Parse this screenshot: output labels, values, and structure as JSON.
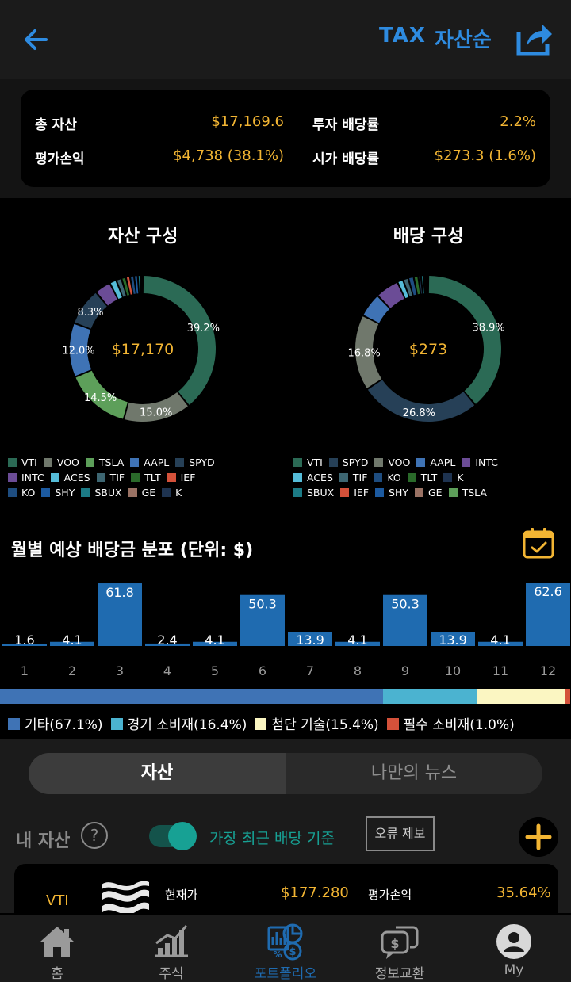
{
  "header": {
    "tax_label": "TAX",
    "sort_label": "자산순"
  },
  "summary": {
    "total_assets_label": "총 자산",
    "total_assets_value": "$17,169.6",
    "invest_yield_label": "투자 배당률",
    "invest_yield_value": "2.2%",
    "gain_label": "평가손익",
    "gain_value": "$4,738 (38.1%)",
    "market_yield_label": "시가 배당률",
    "market_yield_value": "$273.3 (1.6%)"
  },
  "asset_chart": {
    "title": "자산 구성",
    "center_label": "$17,170",
    "slices": [
      {
        "name": "VTI",
        "value": 39.2,
        "color": "#2b6a55",
        "label": "39.2%"
      },
      {
        "name": "VOO",
        "value": 15.0,
        "color": "#70786c",
        "label": "15.0%"
      },
      {
        "name": "TSLA",
        "value": 14.5,
        "color": "#5d9f5a",
        "label": "14.5%"
      },
      {
        "name": "AAPL",
        "value": 12.0,
        "color": "#3f73b5",
        "label": "12.0%"
      },
      {
        "name": "SPYD",
        "value": 8.3,
        "color": "#264057",
        "label": "8.3%"
      },
      {
        "name": "INTC",
        "value": 3.6,
        "color": "#6b4c96",
        "label": ""
      },
      {
        "name": "ACES",
        "value": 1.5,
        "color": "#55bcd8",
        "label": ""
      },
      {
        "name": "TIF",
        "value": 1.2,
        "color": "#3d6672",
        "label": ""
      },
      {
        "name": "TLT",
        "value": 1.0,
        "color": "#2a6a2a",
        "label": ""
      },
      {
        "name": "IEF",
        "value": 0.9,
        "color": "#d4513a",
        "label": ""
      },
      {
        "name": "KO",
        "value": 0.9,
        "color": "#1e4d80",
        "label": ""
      },
      {
        "name": "SHY",
        "value": 0.8,
        "color": "#1c5aa0",
        "label": ""
      },
      {
        "name": "SBUX",
        "value": 0.6,
        "color": "#1c7b86",
        "label": ""
      },
      {
        "name": "GE",
        "value": 0.3,
        "color": "#9a7264",
        "label": ""
      },
      {
        "name": "K",
        "value": 0.2,
        "color": "#1e3350",
        "label": ""
      }
    ]
  },
  "dividend_chart": {
    "title": "배당 구성",
    "center_label": "$273",
    "slices": [
      {
        "name": "VTI",
        "value": 38.9,
        "color": "#2b6a55",
        "label": "38.9%"
      },
      {
        "name": "SPYD",
        "value": 26.8,
        "color": "#264057",
        "label": "26.8%"
      },
      {
        "name": "VOO",
        "value": 16.8,
        "color": "#70786c",
        "label": "16.8%"
      },
      {
        "name": "AAPL",
        "value": 5.4,
        "color": "#3f73b5",
        "label": ""
      },
      {
        "name": "INTC",
        "value": 5.2,
        "color": "#6b4c96",
        "label": ""
      },
      {
        "name": "ACES",
        "value": 1.3,
        "color": "#55bcd8",
        "label": ""
      },
      {
        "name": "TIF",
        "value": 1.2,
        "color": "#3d6672",
        "label": ""
      },
      {
        "name": "KO",
        "value": 1.2,
        "color": "#1e4d80",
        "label": ""
      },
      {
        "name": "TLT",
        "value": 1.0,
        "color": "#2a6a2a",
        "label": ""
      },
      {
        "name": "K",
        "value": 0.6,
        "color": "#1e3350",
        "label": ""
      },
      {
        "name": "SBUX",
        "value": 0.6,
        "color": "#1c7b86",
        "label": ""
      },
      {
        "name": "IEF",
        "value": 0.4,
        "color": "#d4513a",
        "label": ""
      },
      {
        "name": "SHY",
        "value": 0.3,
        "color": "#1c5aa0",
        "label": ""
      },
      {
        "name": "GE",
        "value": 0.2,
        "color": "#9a7264",
        "label": ""
      },
      {
        "name": "TSLA",
        "value": 0.1,
        "color": "#5d9f5a",
        "label": ""
      }
    ]
  },
  "monthly": {
    "title": "월별 예상 배당금 분포 (단위: $)"
  },
  "chart_data": {
    "type": "bar",
    "categories": [
      "1",
      "2",
      "3",
      "4",
      "5",
      "6",
      "7",
      "8",
      "9",
      "10",
      "11",
      "12"
    ],
    "values": [
      1.6,
      4.1,
      61.8,
      2.4,
      4.1,
      50.3,
      13.9,
      4.1,
      50.3,
      13.9,
      4.1,
      62.6
    ],
    "title": "월별 예상 배당금 분포 (단위: $)",
    "ylim": [
      0,
      70
    ],
    "color": "#1f6bb0"
  },
  "sectors": [
    {
      "label": "기타(67.1%)",
      "value": 67.1,
      "color": "#3f73b5"
    },
    {
      "label": "경기 소비재(16.4%)",
      "value": 16.4,
      "color": "#4bb3d0"
    },
    {
      "label": "첨단 기술(15.4%)",
      "value": 15.4,
      "color": "#fbf6c2"
    },
    {
      "label": "필수 소비재(1.0%)",
      "value": 1.0,
      "color": "#d4513a"
    }
  ],
  "tabs": {
    "assets": "자산",
    "news": "나만의 뉴스"
  },
  "my_assets": {
    "title": "내 자산",
    "help": "?",
    "toggle_label": "가장 최근 배당 기준",
    "error_report": "오류 제보"
  },
  "holding": {
    "ticker": "VTI",
    "price_label": "현재가",
    "price_value": "$177.280",
    "gain_label": "평가손익",
    "gain_value": "35.64%"
  },
  "nav": [
    {
      "label": "홈",
      "icon": "home-icon"
    },
    {
      "label": "주식",
      "icon": "chart-icon"
    },
    {
      "label": "포트폴리오",
      "icon": "portfolio-icon",
      "active": true
    },
    {
      "label": "정보교환",
      "icon": "chat-icon"
    },
    {
      "label": "My",
      "icon": "user-icon"
    }
  ],
  "colors": {
    "accent": "#2e8be0",
    "value": "#f2b533",
    "teal": "#17a194"
  }
}
